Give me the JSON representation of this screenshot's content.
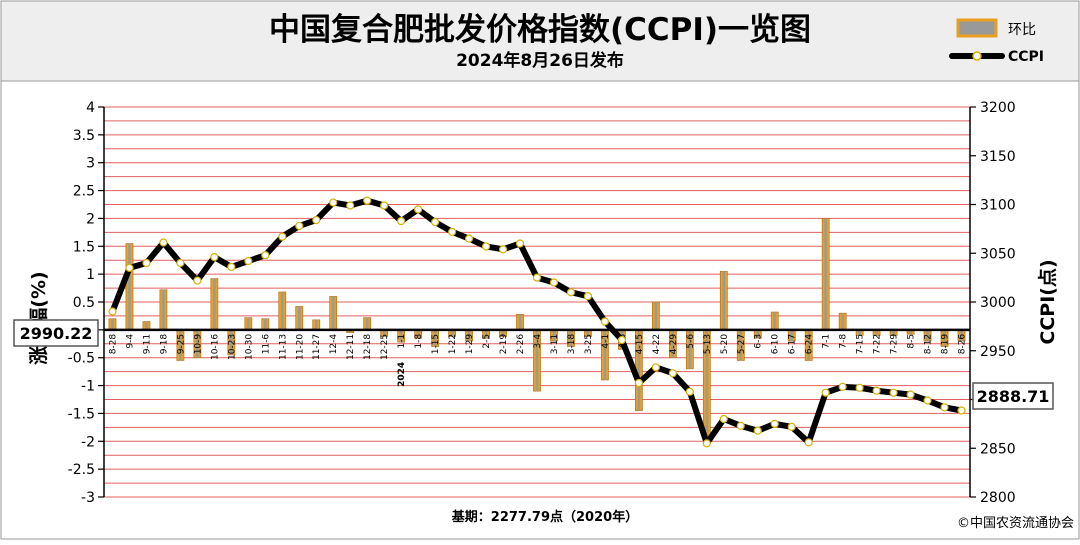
{
  "header": {
    "title": "中国复合肥批发价格指数(CCPI)一览图",
    "subtitle": "2024年8月26日发布"
  },
  "legend": {
    "bar_label": "环比",
    "line_label": "CCPI"
  },
  "footer": {
    "base_text": "基期：2277.79点（2020年）",
    "copyright": "©中国农资流通协会"
  },
  "callouts": {
    "start_value": "2990.22",
    "end_value": "2888.71"
  },
  "colors": {
    "bar_fill": "#e8a020",
    "line": "#000000",
    "gridline": "#e06060",
    "header_bg": "#eeeeee"
  },
  "chart_data": {
    "type": "bar+line",
    "y_left": {
      "label": "涨跌幅(%)",
      "range": [
        -3,
        4
      ],
      "ticks": [
        "-3",
        "-2.5",
        "-2",
        "-1.5",
        "-1",
        "-0.5",
        "0",
        "0.5",
        "1",
        "1.5",
        "2",
        "2.5",
        "3",
        "3.5",
        "4"
      ]
    },
    "y_right": {
      "label": "CCPI(点)",
      "range": [
        2800,
        3200
      ],
      "ticks": [
        "2800",
        "2850",
        "2900",
        "2950",
        "3000",
        "3050",
        "3100",
        "3150",
        "3200"
      ]
    },
    "year_marker": "2024",
    "x_labels": [
      "8-28",
      "9-4",
      "9-11",
      "9-18",
      "9-25",
      "10-9",
      "10-16",
      "10-23",
      "10-30",
      "11-6",
      "11-13",
      "11-20",
      "11-27",
      "12-4",
      "12-11",
      "12-18",
      "12-25",
      "1-1",
      "1-8",
      "1-15",
      "1-22",
      "1-29",
      "2-5",
      "2-19",
      "2-26",
      "3-4",
      "3-11",
      "3-18",
      "3-25",
      "4-1",
      "4-8",
      "4-15",
      "4-22",
      "4-29",
      "5-6",
      "5-13",
      "5-20",
      "5-27",
      "6-3",
      "6-10",
      "6-17",
      "6-24",
      "7-1",
      "7-8",
      "7-15",
      "7-22",
      "7-29",
      "8-5",
      "8-12",
      "8-19",
      "8-26"
    ],
    "series": [
      {
        "name": "环比",
        "type": "bar",
        "values": [
          0.2,
          1.55,
          0.15,
          0.72,
          -0.55,
          -0.5,
          0.92,
          -0.45,
          0.22,
          0.2,
          0.68,
          0.42,
          0.18,
          0.6,
          -0.05,
          0.22,
          -0.12,
          -0.22,
          -0.15,
          -0.3,
          -0.12,
          -0.2,
          -0.15,
          -0.12,
          0.28,
          -1.1,
          -0.2,
          -0.3,
          -0.12,
          -0.9,
          -0.35,
          -1.45,
          0.5,
          -0.5,
          -0.7,
          -2.05,
          1.05,
          -0.55,
          -0.15,
          0.32,
          -0.2,
          -0.55,
          2.0,
          0.3,
          -0.1,
          -0.1,
          -0.1,
          -0.08,
          -0.2,
          -0.3,
          -0.2
        ]
      },
      {
        "name": "CCPI",
        "type": "line",
        "values": [
          2990.22,
          3035,
          3040,
          3061,
          3040,
          3022,
          3046,
          3036,
          3042,
          3048,
          3067,
          3078,
          3084,
          3102,
          3099,
          3104,
          3099,
          3083,
          3095,
          3082,
          3072,
          3065,
          3057,
          3054,
          3060,
          3025,
          3020,
          3010,
          3006,
          2980,
          2961,
          2917,
          2933,
          2927,
          2908,
          2855,
          2880,
          2873,
          2868,
          2875,
          2872,
          2856,
          2907,
          2913,
          2912,
          2909,
          2907,
          2905,
          2899,
          2892,
          2888.71
        ]
      }
    ]
  }
}
